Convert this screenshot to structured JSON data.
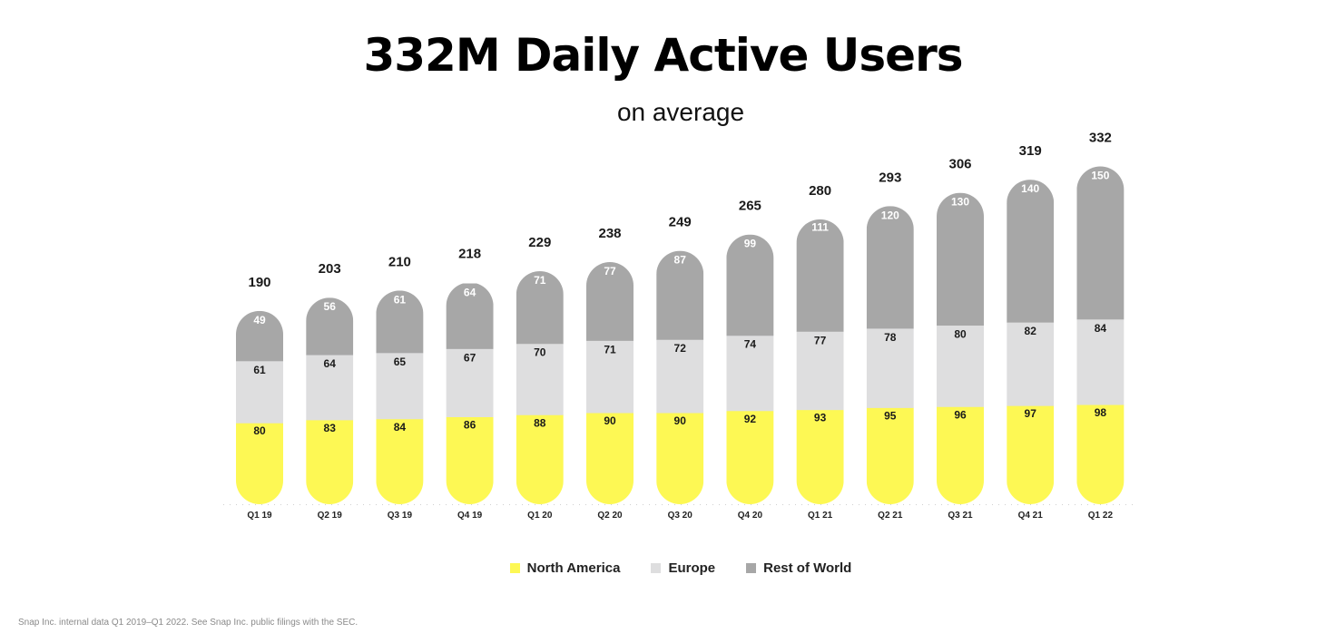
{
  "title": "332M Daily Active Users",
  "subtitle": "on average",
  "source": "Snap Inc. internal data Q1 2019–Q1 2022. See Snap Inc. public filings with the SEC.",
  "colors": {
    "north_america": "#fdf854",
    "europe": "#dededf",
    "rest_of_world": "#a7a7a7"
  },
  "chart_data": {
    "type": "bar",
    "stacked": true,
    "categories": [
      "Q1 19",
      "Q2 19",
      "Q3 19",
      "Q4 19",
      "Q1 20",
      "Q2 20",
      "Q3 20",
      "Q4 20",
      "Q1 21",
      "Q2 21",
      "Q3 21",
      "Q4 21",
      "Q1 22"
    ],
    "totals": [
      190,
      203,
      210,
      218,
      229,
      238,
      249,
      265,
      280,
      293,
      306,
      319,
      332
    ],
    "series": [
      {
        "name": "North America",
        "values": [
          80,
          83,
          84,
          86,
          88,
          90,
          90,
          92,
          93,
          95,
          96,
          97,
          98
        ]
      },
      {
        "name": "Europe",
        "values": [
          61,
          64,
          65,
          67,
          70,
          71,
          72,
          74,
          77,
          78,
          80,
          82,
          84
        ]
      },
      {
        "name": "Rest of World",
        "values": [
          49,
          56,
          61,
          64,
          71,
          77,
          87,
          99,
          111,
          120,
          130,
          140,
          150
        ]
      }
    ],
    "legend_position": "bottom",
    "grid": false
  }
}
